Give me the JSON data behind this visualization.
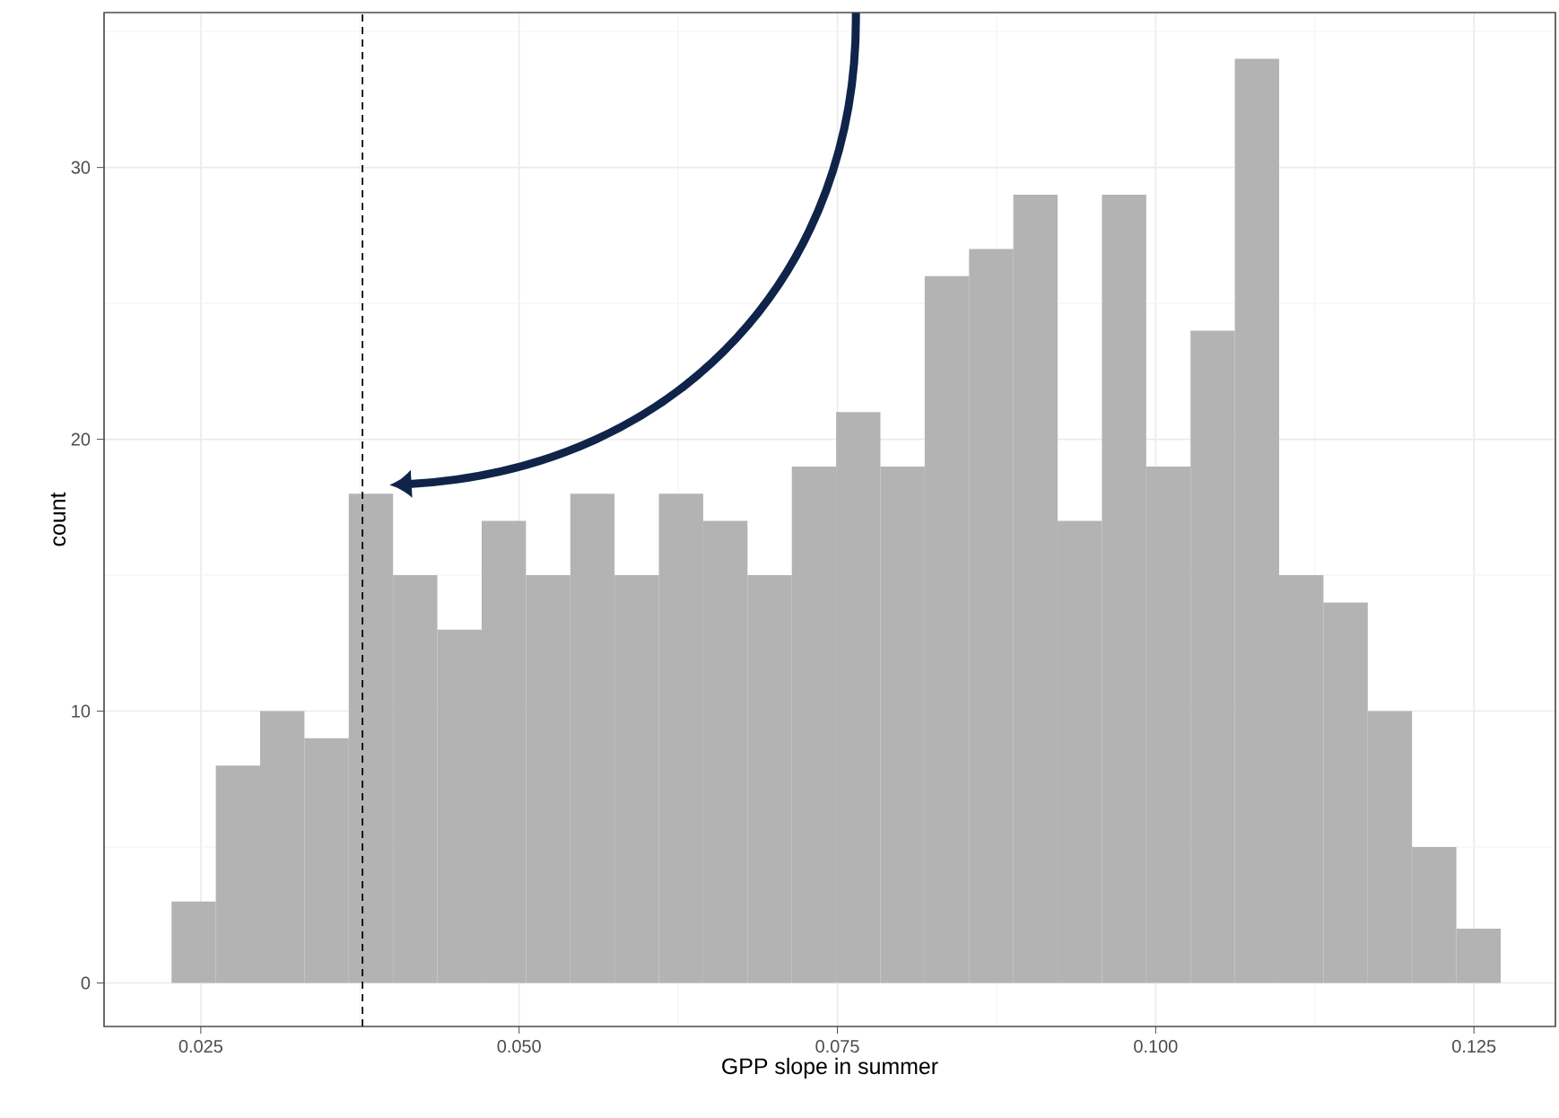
{
  "chart_data": {
    "type": "histogram",
    "xlabel": "GPP slope in summer",
    "ylabel": "count",
    "bins": [
      0.0227,
      0.02618,
      0.02966,
      0.03314,
      0.03662,
      0.0401,
      0.04358,
      0.04706,
      0.05054,
      0.05402,
      0.0575,
      0.06098,
      0.06446,
      0.06794,
      0.07142,
      0.0749,
      0.07838,
      0.08186,
      0.08534,
      0.08882,
      0.0923,
      0.09578,
      0.09926,
      0.10274,
      0.10622,
      0.1097,
      0.11318,
      0.11666,
      0.12014,
      0.12362,
      0.1271
    ],
    "values": [
      3,
      8,
      10,
      9,
      18,
      15,
      13,
      17,
      15,
      18,
      15,
      18,
      17,
      15,
      19,
      21,
      19,
      26,
      27,
      29,
      17,
      29,
      19,
      24,
      34,
      15,
      14,
      10,
      5,
      2
    ],
    "color": "#b3b3b3",
    "xlim": [
      0.0174,
      0.1314
    ],
    "ylim": [
      -1.6,
      35.7
    ],
    "xticks": [
      {
        "value": 0.025,
        "label": "0.025"
      },
      {
        "value": 0.05,
        "label": "0.050"
      },
      {
        "value": 0.075,
        "label": "0.075"
      },
      {
        "value": 0.1,
        "label": "0.100"
      },
      {
        "value": 0.125,
        "label": "0.125"
      }
    ],
    "yticks": [
      0,
      10,
      20,
      30
    ],
    "grid": true,
    "ref_lines": [
      {
        "axis": "x",
        "value": 0.0377,
        "color": "#000000",
        "line_style": "dashed"
      }
    ]
  }
}
